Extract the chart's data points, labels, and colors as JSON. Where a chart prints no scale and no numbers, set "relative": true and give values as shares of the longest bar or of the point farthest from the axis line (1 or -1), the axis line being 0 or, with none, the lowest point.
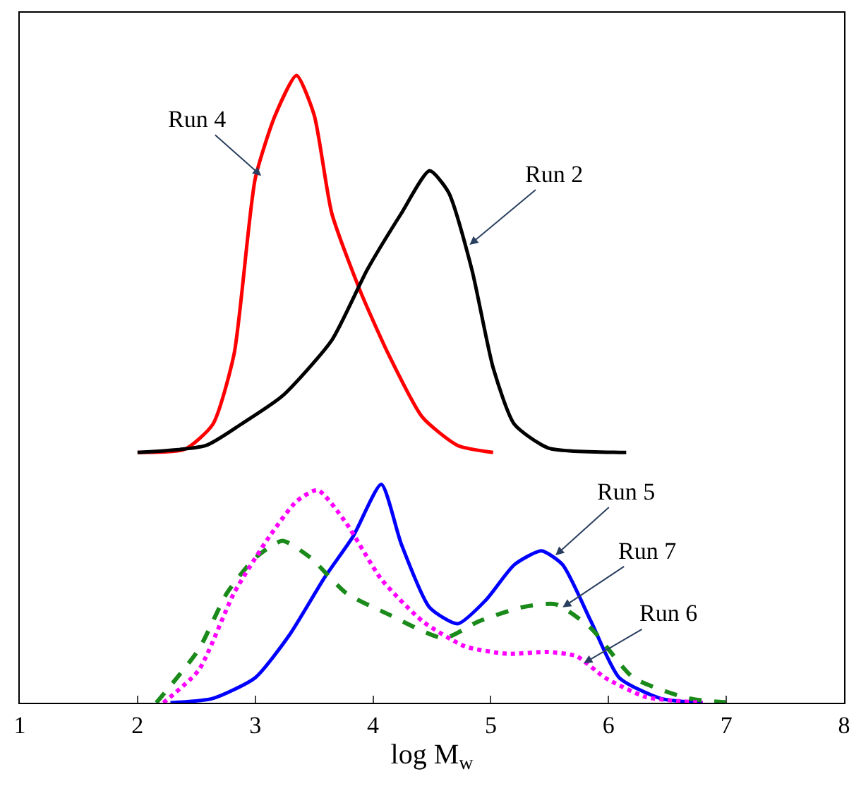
{
  "chart_data": {
    "type": "line",
    "relative": true,
    "xlabel": "log M$_{w}$",
    "xlim": [
      1,
      8
    ],
    "xticks": [
      1,
      2,
      3,
      4,
      5,
      6,
      7,
      8
    ],
    "legend": false,
    "marker": "none",
    "series": [
      {
        "color": "#ff0000",
        "line_style": "solid",
        "x": [
          2.0,
          2.4,
          2.64,
          2.82,
          3.0,
          3.17,
          3.35,
          3.5,
          3.65,
          3.89,
          4.13,
          4.42,
          4.72,
          5.02
        ],
        "values": [
          0.399,
          0.404,
          0.444,
          0.556,
          0.836,
          0.937,
          1.0,
          0.937,
          0.78,
          0.657,
          0.556,
          0.455,
          0.41,
          0.399
        ]
      },
      {
        "color": "#000000",
        "line_style": "solid",
        "x": [
          2.0,
          2.58,
          2.88,
          3.23,
          3.65,
          3.95,
          4.24,
          4.48,
          4.64,
          4.84,
          5.02,
          5.2,
          5.49,
          6.09,
          6.15
        ],
        "values": [
          0.399,
          0.41,
          0.444,
          0.489,
          0.578,
          0.69,
          0.78,
          0.848,
          0.814,
          0.69,
          0.534,
          0.444,
          0.406,
          0.399,
          0.399
        ]
      },
      {
        "color": "#0000ff",
        "line_style": "solid",
        "x": [
          2.28,
          2.64,
          3.0,
          3.29,
          3.59,
          3.83,
          4.07,
          4.24,
          4.48,
          4.72,
          4.96,
          5.2,
          5.43,
          5.61,
          5.85,
          6.09,
          6.44,
          6.8
        ],
        "values": [
          0,
          0.007,
          0.04,
          0.108,
          0.2,
          0.265,
          0.348,
          0.253,
          0.152,
          0.126,
          0.164,
          0.22,
          0.242,
          0.22,
          0.13,
          0.04,
          0.007,
          0
        ]
      },
      {
        "color": "#1a8a1a",
        "line_style": "dashed",
        "x": [
          2.16,
          2.52,
          2.76,
          3.0,
          3.23,
          3.47,
          3.77,
          4.13,
          4.6,
          4.9,
          5.26,
          5.55,
          5.85,
          6.21,
          6.68,
          7.04
        ],
        "values": [
          0,
          0.085,
          0.175,
          0.231,
          0.258,
          0.231,
          0.175,
          0.141,
          0.103,
          0.13,
          0.152,
          0.157,
          0.119,
          0.04,
          0.007,
          0
        ]
      },
      {
        "color": "#ff00ff",
        "line_style": "dotted",
        "x": [
          2.22,
          2.52,
          2.82,
          3.12,
          3.35,
          3.53,
          3.77,
          4.07,
          4.42,
          4.78,
          5.14,
          5.49,
          5.73,
          5.97,
          6.32,
          6.8
        ],
        "values": [
          0,
          0.052,
          0.175,
          0.265,
          0.321,
          0.339,
          0.287,
          0.197,
          0.13,
          0.09,
          0.078,
          0.081,
          0.074,
          0.04,
          0.009,
          0
        ]
      }
    ],
    "annotations": [
      {
        "text": "Run 4",
        "x": 3.05,
        "y": 0.84
      },
      {
        "text": "Run 2",
        "x": 4.82,
        "y": 0.73
      },
      {
        "text": "Run 5",
        "x": 5.55,
        "y": 0.235
      },
      {
        "text": "Run 7",
        "x": 5.61,
        "y": 0.152
      },
      {
        "text": "Run 6",
        "x": 5.79,
        "y": 0.063
      }
    ]
  }
}
